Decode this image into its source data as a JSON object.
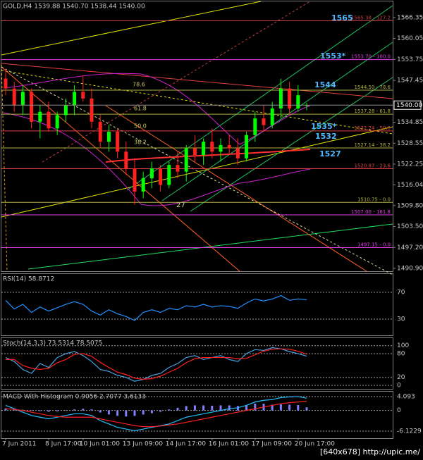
{
  "chart_data": [
    {
      "type": "candlestick",
      "title": "GOLD,H4 1539.88 1540.70 1538.44 1540.00",
      "categories": [
        "7 Jun 2011",
        null,
        null,
        null,
        null,
        "8 Jun 17:00",
        null,
        null,
        null,
        "10 Jun 01:00",
        null,
        null,
        null,
        null,
        "13 Jun 09:00",
        null,
        null,
        null,
        null,
        "14 Jun 17:00",
        null,
        null,
        null,
        null,
        "16 Jun 01:00",
        null,
        null,
        null,
        null,
        "17 Jun 09:00",
        null,
        null,
        null,
        null,
        "20 Jun 17:00",
        null
      ],
      "open": [
        1548,
        1545,
        1540,
        1544,
        1535,
        1538,
        1533,
        1537,
        1540,
        1544,
        1542,
        1535,
        1529,
        1532,
        1526,
        1521,
        1514,
        1518,
        1521,
        1516,
        1522,
        1520,
        1527,
        1525,
        1529,
        1526,
        1528,
        1527,
        1524,
        1531,
        1536,
        1534,
        1539,
        1545,
        1539,
        1539.88
      ],
      "high": [
        1551,
        1547,
        1546,
        1545,
        1540,
        1541,
        1538,
        1542,
        1546,
        1549,
        1545,
        1537,
        1534,
        1533,
        1529,
        1524,
        1520,
        1523,
        1522,
        1523,
        1526,
        1528,
        1531,
        1530,
        1533,
        1530,
        1531,
        1530,
        1532,
        1538,
        1540,
        1541,
        1548,
        1547,
        1546,
        1540.7
      ],
      "low": [
        1543,
        1538,
        1537,
        1533,
        1530,
        1532,
        1531,
        1535,
        1537,
        1541,
        1533,
        1527,
        1526,
        1524,
        1519,
        1510,
        1512,
        1515,
        1514,
        1515,
        1518,
        1517,
        1523,
        1522,
        1524,
        1523,
        1525,
        1522,
        1523,
        1529,
        1532,
        1533,
        1536,
        1537,
        1538,
        1538.44
      ],
      "close": [
        1545,
        1540,
        1544,
        1535,
        1538,
        1533,
        1537,
        1540,
        1544,
        1542,
        1535,
        1529,
        1532,
        1526,
        1521,
        1514,
        1518,
        1521,
        1516,
        1522,
        1520,
        1527,
        1525,
        1529,
        1526,
        1528,
        1527,
        1524,
        1531,
        1536,
        1534,
        1539,
        1545,
        1539,
        1543,
        1540
      ],
      "up_color": "#00ff00",
      "down_color": "#ff2020",
      "ylim": [
        1490.05,
        1571.2
      ],
      "yticks": [
        1566.35,
        1560.05,
        1553.75,
        1547.45,
        1534.85,
        1528.55,
        1522.25,
        1516.04,
        {
          "value": 1509.8,
          "label": "1509.80"
        },
        {
          "value": 1503.5,
          "label": "1503.50"
        },
        {
          "value": 1497.2,
          "label": "1497.20"
        },
        {
          "value": 1490.9,
          "label": "1490.90"
        }
      ],
      "last_price": {
        "value": 1540,
        "label": "1540.00"
      },
      "levels": [
        {
          "label": "1565.38 - 127.2",
          "value": 1565.38,
          "color": "#c04040"
        },
        {
          "label": "1553.70 - 100.0",
          "value": 1553.7,
          "color": "#e040e0"
        },
        {
          "label": "1544.50 - 78.6",
          "value": 1544.5,
          "color": "#b0b040"
        },
        {
          "label": "1537.28 - 61.8",
          "value": 1537.28,
          "color": "#b0b040"
        },
        {
          "label": "1532.24 - 50.0",
          "value": 1532.24,
          "color": "#e04040"
        },
        {
          "label": "1527.14 - 38.2",
          "value": 1527.14,
          "color": "#b0b040"
        },
        {
          "label": "1520.87 - 23.6",
          "value": 1520.87,
          "color": "#e04040"
        },
        {
          "label": "1510.75 - 0.0",
          "value": 1510.75,
          "color": "#b0b040"
        },
        {
          "label": "1507.00 - 161.8",
          "value": 1507,
          "color": "#e040e0"
        },
        {
          "label": "1497.15 - 0.0",
          "value": 1497.15,
          "color": "#e040e0"
        }
      ],
      "annotations": [
        "1565",
        "1553*",
        "1544",
        "1535*",
        "1532",
        "1527",
        "27",
        "78.6",
        "61.8",
        "50.0",
        "38.2"
      ]
    },
    {
      "type": "line",
      "title": "RSI(14) 58.8712",
      "series": [
        {
          "color": "#2090ff",
          "values": [
            58,
            45,
            52,
            40,
            48,
            42,
            47,
            52,
            56,
            52,
            42,
            36,
            44,
            38,
            34,
            28,
            40,
            44,
            40,
            46,
            44,
            50,
            48,
            52,
            48,
            50,
            49,
            46,
            54,
            60,
            57,
            60,
            65,
            58,
            60,
            58.87
          ]
        }
      ],
      "ylim": [
        6,
        97
      ],
      "yticks": [
        70,
        30
      ]
    },
    {
      "type": "line",
      "title": "Stoch(14,3,3) 73.5314 78.5075",
      "series": [
        {
          "color": "#4aa0e0",
          "values": [
            70,
            60,
            40,
            30,
            55,
            45,
            70,
            80,
            85,
            75,
            60,
            40,
            35,
            25,
            20,
            10,
            15,
            25,
            30,
            45,
            55,
            70,
            75,
            65,
            70,
            75,
            65,
            60,
            80,
            90,
            88,
            95,
            92,
            85,
            80,
            73.5314
          ]
        },
        {
          "color": "#ff2020",
          "values": [
            65,
            65,
            50,
            43,
            40,
            43,
            57,
            65,
            78,
            80,
            73,
            58,
            45,
            33,
            27,
            18,
            15,
            17,
            23,
            33,
            43,
            57,
            67,
            70,
            70,
            70,
            70,
            67,
            68,
            77,
            86,
            91,
            92,
            91,
            86,
            78.5075
          ]
        }
      ],
      "ylim": [
        -9,
        119
      ],
      "yticks": [
        100,
        80,
        20,
        0
      ]
    },
    {
      "type": "macd",
      "title": "MACD With Histogram 0.9056 2.7077 3.6133",
      "histogram": [
        0.6,
        0.4,
        0.2,
        0.1,
        -0.2,
        -0.4,
        -0.3,
        0.1,
        0.3,
        0.5,
        0.3,
        -0.6,
        -1.2,
        -1.6,
        -1.8,
        -1.6,
        -1.2,
        -0.8,
        -0.4,
        0.3,
        0.8,
        1.3,
        1.5,
        1.5,
        1.4,
        1.5,
        1.5,
        1.3,
        1.5,
        2.0,
        2.0,
        1.7,
        1.8,
        1.7,
        1.6,
        0.9056
      ],
      "hist_color": "#8080ff",
      "series": [
        {
          "color": "#20c0ff",
          "values": [
            1.5,
            0.5,
            -0.5,
            -1.5,
            -2,
            -2.5,
            -2,
            -1.5,
            -1,
            -1,
            -1.5,
            -3,
            -4,
            -5,
            -5.5,
            -6,
            -5.5,
            -5,
            -4.5,
            -4,
            -3,
            -2,
            -1.5,
            -1,
            -0.5,
            0,
            0.5,
            0.8,
            1.5,
            2.5,
            3,
            3.2,
            3.8,
            4,
            4.1,
            3.6133
          ]
        },
        {
          "color": "#ff2020",
          "values": [
            0.5,
            0.3,
            0,
            -0.5,
            -1,
            -1.5,
            -1.8,
            -2,
            -2,
            -2,
            -2,
            -2.5,
            -3,
            -3.5,
            -4,
            -4.5,
            -4.8,
            -4.8,
            -4.6,
            -4.3,
            -4,
            -3.5,
            -3,
            -2.5,
            -2,
            -1.5,
            -1,
            -0.5,
            0,
            0.5,
            1,
            1.5,
            2,
            2.3,
            2.5,
            2.7077
          ]
        }
      ],
      "ylim": [
        -8.2,
        5.55
      ],
      "yticks": [
        4.093,
        0,
        -6.1229
      ]
    }
  ],
  "footer": "[640x678] http://upic.me/"
}
